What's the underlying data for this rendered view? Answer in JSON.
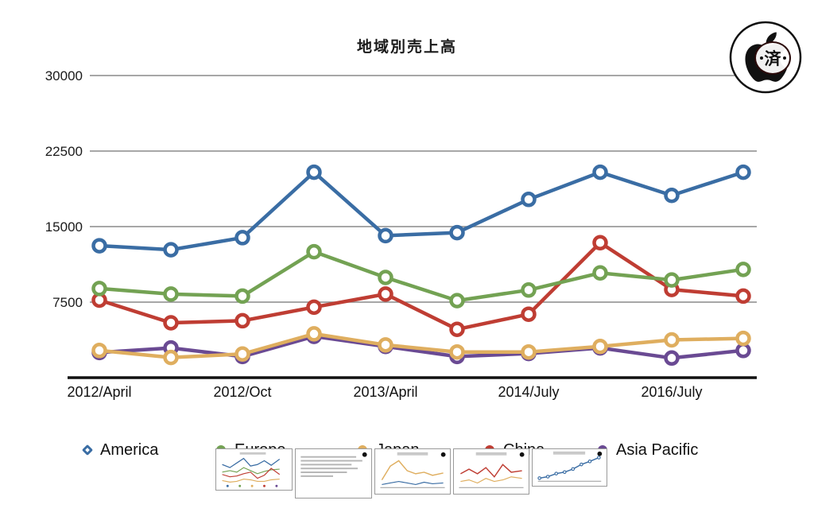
{
  "chart": {
    "title": "地域別売上高"
  },
  "stamp": {
    "icon": "apple-logo",
    "label": "済"
  },
  "chart_data": {
    "type": "line",
    "title": "地域別売上高",
    "categories": [
      "2012/April",
      "",
      "2012/Oct",
      "",
      "2013/April",
      "",
      "2014/July",
      "",
      "2016/July",
      ""
    ],
    "series": [
      {
        "name": "America",
        "color": "#3a6da4",
        "values": [
          13100,
          12700,
          13900,
          20400,
          14100,
          14400,
          17700,
          20400,
          18100,
          20400
        ]
      },
      {
        "name": "Europe",
        "color": "#73a253",
        "values": [
          8850,
          8300,
          8100,
          12500,
          9950,
          7650,
          8700,
          10400,
          9700,
          10750
        ]
      },
      {
        "name": "Japan",
        "color": "#dfae5f",
        "values": [
          2700,
          2000,
          2350,
          4350,
          3250,
          2550,
          2550,
          3100,
          3750,
          3900
        ]
      },
      {
        "name": "China",
        "color": "#bf3d33",
        "values": [
          7700,
          5450,
          5650,
          7000,
          8300,
          4800,
          6300,
          13400,
          8750,
          8100
        ]
      },
      {
        "name": "Asia Pacific",
        "color": "#6a4a93",
        "values": [
          2500,
          2950,
          2100,
          4100,
          3100,
          2100,
          2400,
          2950,
          1950,
          2700
        ]
      }
    ],
    "ylim": [
      0,
      30000
    ],
    "yticks": [
      30000,
      22500,
      15000,
      7500
    ],
    "grid": true,
    "legend_position": "bottom",
    "marker_style": "open-circle"
  },
  "legend": {
    "marker_shapes": [
      "diamond",
      "circle",
      "circle",
      "circle",
      "circle"
    ]
  },
  "thumbnails": [
    "mini-multi-line-chart",
    "mini-text-note",
    "mini-line-chart",
    "mini-line-chart",
    "mini-rising-line-chart"
  ]
}
